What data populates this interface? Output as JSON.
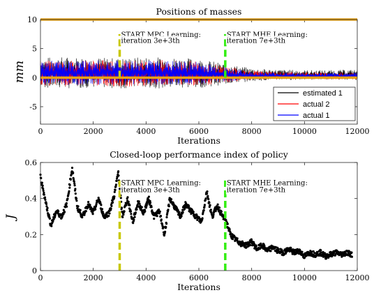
{
  "chart_data": [
    {
      "type": "line",
      "title": "Positions of masses",
      "xlabel": "Iterations",
      "ylabel": "mm",
      "xlim": [
        0,
        12000
      ],
      "ylim": [
        -8,
        10
      ],
      "xticks": [
        "0",
        "2000",
        "4000",
        "6000",
        "8000",
        "10000",
        "12000"
      ],
      "yticks": [
        "-5",
        "0",
        "5",
        "10"
      ],
      "legend": {
        "placement": "bottom-right",
        "entries": [
          "estimated 1",
          "actual 2",
          "actual 1"
        ]
      },
      "series": [
        {
          "name": "estimated 1",
          "color": "#000000",
          "x": [
            0,
            1000,
            2000,
            3000,
            4000,
            5000,
            6000,
            7000,
            8000,
            9000,
            10000,
            11000,
            12000
          ],
          "y_max": [
            3.5,
            3.6,
            3.5,
            3.4,
            3.6,
            3.5,
            3.3,
            2.4,
            1.6,
            1.4,
            1.3,
            1.3,
            1.4
          ],
          "y_min": [
            -1.8,
            -1.9,
            -1.7,
            -1.9,
            -1.8,
            -1.9,
            -1.8,
            -1.2,
            -0.6,
            -0.4,
            -0.4,
            -0.3,
            -0.4
          ]
        },
        {
          "name": "actual 2",
          "color": "#ff0000",
          "x": [
            0,
            1000,
            2000,
            3000,
            4000,
            5000,
            6000,
            7000,
            8000,
            9000,
            10000,
            11000,
            12000
          ],
          "y_max": [
            3.2,
            3.0,
            3.1,
            3.0,
            3.1,
            3.0,
            2.9,
            2.0,
            1.2,
            1.0,
            1.0,
            0.9,
            1.0
          ],
          "y_min": [
            -1.4,
            -1.5,
            -1.4,
            -1.6,
            -1.5,
            -1.4,
            -1.5,
            -0.9,
            -0.4,
            -0.3,
            -0.3,
            -0.3,
            -0.3
          ]
        },
        {
          "name": "actual 1",
          "color": "#0000ff",
          "x": [
            0,
            1000,
            2000,
            3000,
            4000,
            5000,
            6000,
            7000,
            8000,
            9000,
            10000,
            11000,
            12000
          ],
          "y_max": [
            3.0,
            2.9,
            3.0,
            3.0,
            3.0,
            2.9,
            2.8,
            1.8,
            1.0,
            0.9,
            0.8,
            0.8,
            0.9
          ],
          "y_min": [
            -1.2,
            -1.3,
            -1.2,
            -1.3,
            -1.2,
            -1.3,
            -1.2,
            -0.7,
            -0.3,
            -0.2,
            -0.2,
            -0.2,
            -0.2
          ]
        },
        {
          "color": "#e8a317",
          "x": [
            0,
            12000
          ],
          "y": [
            10,
            10
          ]
        },
        {
          "color": "#e8a317",
          "x": [
            0,
            12000
          ],
          "y": [
            0,
            0
          ]
        }
      ],
      "vlines": [
        {
          "x": 3000,
          "color": "#c8c800",
          "y_range": [
            0,
            7.5
          ]
        },
        {
          "x": 7000,
          "color": "#33ee11",
          "y_range": [
            0,
            7.5
          ]
        }
      ],
      "annotations": [
        {
          "text": "START MPC Learning:",
          "x": 3000,
          "y": 7.0
        },
        {
          "text": "iteration 3e+3th",
          "x": 3000,
          "y": 6.0
        },
        {
          "text": "START MHE Learning:",
          "x": 7000,
          "y": 7.0
        },
        {
          "text": "iteration 7e+3th",
          "x": 7000,
          "y": 6.0
        }
      ],
      "grid": false
    },
    {
      "type": "scatter",
      "title": "Closed-loop performance index of policy",
      "xlabel": "Iterations",
      "ylabel": "J",
      "xlim": [
        0,
        12000
      ],
      "ylim": [
        0,
        0.6
      ],
      "xticks": [
        "0",
        "2000",
        "4000",
        "6000",
        "8000",
        "10000",
        "12000"
      ],
      "yticks": [
        "0",
        "0.2",
        "0.4",
        "0.6"
      ],
      "series": [
        {
          "color": "#000000",
          "x": [
            0,
            200,
            400,
            600,
            800,
            1000,
            1200,
            1400,
            1600,
            1800,
            2000,
            2200,
            2400,
            2600,
            2800,
            2950,
            3100,
            3300,
            3500,
            3700,
            3900,
            4100,
            4300,
            4500,
            4700,
            4900,
            5100,
            5300,
            5500,
            5700,
            5900,
            6100,
            6300,
            6500,
            6700,
            6900,
            7000,
            7200,
            7400,
            7600,
            7800,
            8000,
            8200,
            8400,
            8600,
            8800,
            9000,
            9200,
            9400,
            9600,
            9800,
            10000,
            10200,
            10400,
            10600,
            10800,
            11000,
            11200,
            11400,
            11600,
            11800
          ],
          "y": [
            0.52,
            0.38,
            0.25,
            0.33,
            0.3,
            0.37,
            0.57,
            0.35,
            0.3,
            0.37,
            0.32,
            0.4,
            0.3,
            0.32,
            0.42,
            0.55,
            0.3,
            0.4,
            0.27,
            0.38,
            0.32,
            0.4,
            0.3,
            0.33,
            0.2,
            0.4,
            0.35,
            0.3,
            0.37,
            0.33,
            0.3,
            0.27,
            0.44,
            0.3,
            0.36,
            0.3,
            0.29,
            0.2,
            0.17,
            0.15,
            0.14,
            0.16,
            0.12,
            0.14,
            0.11,
            0.13,
            0.11,
            0.1,
            0.12,
            0.1,
            0.11,
            0.08,
            0.1,
            0.09,
            0.1,
            0.08,
            0.09,
            0.1,
            0.09,
            0.1,
            0.09
          ]
        }
      ],
      "vlines": [
        {
          "x": 3000,
          "color": "#c8c800",
          "y_range": [
            0,
            0.5
          ]
        },
        {
          "x": 7000,
          "color": "#33ee11",
          "y_range": [
            0,
            0.5
          ]
        }
      ],
      "annotations": [
        {
          "text": "START MPC Learning:",
          "x": 3000,
          "y": 0.475
        },
        {
          "text": "iteration 3e+3th",
          "x": 3000,
          "y": 0.435
        },
        {
          "text": "START MHE Learning:",
          "x": 7000,
          "y": 0.475
        },
        {
          "text": "iteration 7e+3th",
          "x": 7000,
          "y": 0.435
        }
      ],
      "grid": false
    }
  ]
}
